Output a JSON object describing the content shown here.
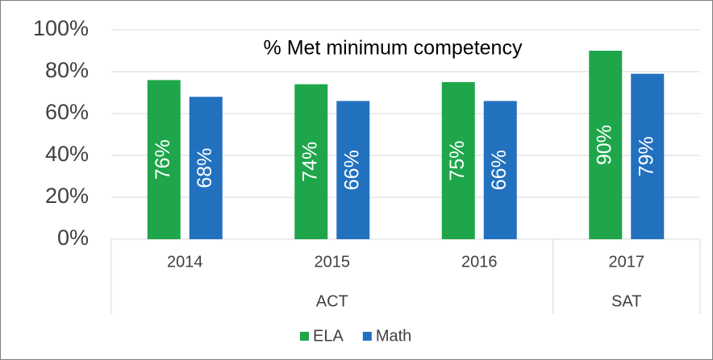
{
  "chart_data": {
    "type": "bar",
    "title": "% Met minimum competency",
    "categories": [
      "2014",
      "2015",
      "2016",
      "2017"
    ],
    "groups": [
      {
        "label": "ACT",
        "count": 3
      },
      {
        "label": "SAT",
        "count": 1
      }
    ],
    "series": [
      {
        "name": "ELA",
        "color": "#1fa64a",
        "values": [
          76,
          74,
          75,
          90
        ],
        "value_labels": [
          "76%",
          "74%",
          "75%",
          "90%"
        ]
      },
      {
        "name": "Math",
        "color": "#2271bf",
        "values": [
          68,
          66,
          66,
          79
        ],
        "value_labels": [
          "68%",
          "66%",
          "66%",
          "79%"
        ]
      }
    ],
    "ylim": [
      0,
      100
    ],
    "yticks": [
      {
        "value": 0,
        "label": "0%"
      },
      {
        "value": 20,
        "label": "20%"
      },
      {
        "value": 40,
        "label": "40%"
      },
      {
        "value": 60,
        "label": "60%"
      },
      {
        "value": 80,
        "label": "80%"
      },
      {
        "value": 100,
        "label": "100%"
      }
    ],
    "grid": true,
    "legend": "bottom"
  }
}
